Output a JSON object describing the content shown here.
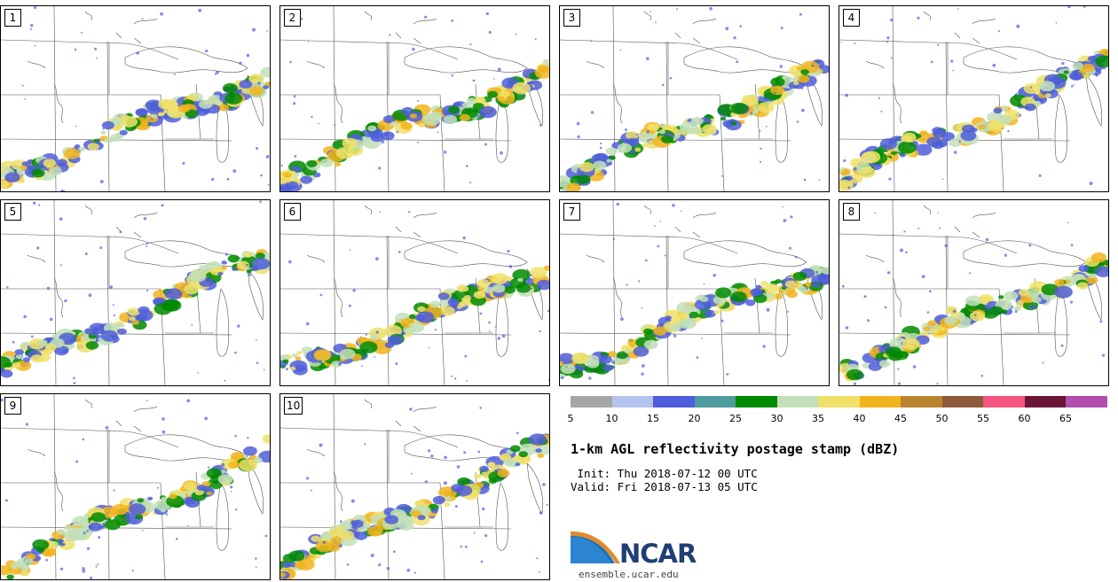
{
  "panels": [
    {
      "label": "1"
    },
    {
      "label": "2"
    },
    {
      "label": "3"
    },
    {
      "label": "4"
    },
    {
      "label": "5"
    },
    {
      "label": "6"
    },
    {
      "label": "7"
    },
    {
      "label": "8"
    },
    {
      "label": "9"
    },
    {
      "label": "10"
    }
  ],
  "colorbar": {
    "ticks": [
      "5",
      "10",
      "15",
      "20",
      "25",
      "30",
      "35",
      "40",
      "45",
      "50",
      "55",
      "60",
      "65"
    ],
    "colors": [
      "#a6a6a6",
      "#b4c3ee",
      "#4f5edb",
      "#4e9ba0",
      "#008a00",
      "#c2dfb9",
      "#efe069",
      "#f2b41c",
      "#b98430",
      "#8f5a3c",
      "#f55580",
      "#6a1535",
      "#b04fb0"
    ]
  },
  "title": "1-km AGL reflectivity postage stamp (dBZ)",
  "init": " Init: Thu 2018-07-12 00 UTC",
  "valid": "Valid: Fri 2018-07-13 05 UTC",
  "logo": {
    "text": "NCAR",
    "url": "ensemble.ucar.edu"
  }
}
